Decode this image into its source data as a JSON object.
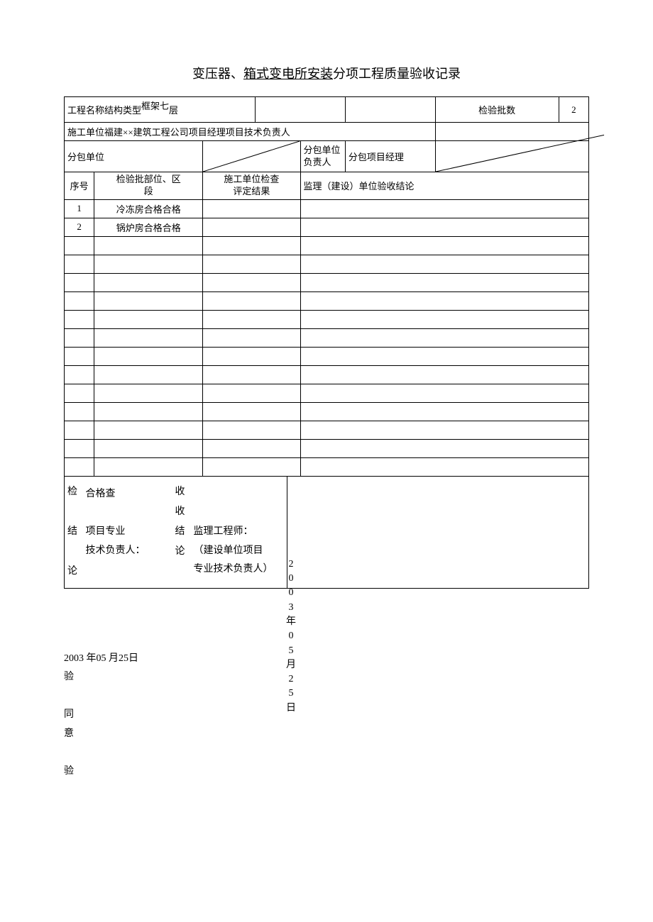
{
  "title_prefix": "变压器、",
  "title_underlined": "箱式变电所安装",
  "title_suffix": "分项工程质量验收记录",
  "header": {
    "projectLabel": "工程名称结构类型",
    "structureValue": "框架七",
    "floorSuffix": "层",
    "batchLabel": "检验批数",
    "batchValue": "2",
    "contractorLabel": "施工单位",
    "contractorValue": "福建××建筑工程公司",
    "pmLabel": "项目经理",
    "techLeadLabel": "项目技术负责人",
    "subcontractorLabel": "分包单位",
    "subResponsibleLabelA": "分包单位",
    "subResponsibleLabelB": "负责人",
    "subPmLabel": "分包项目经理"
  },
  "cols": {
    "seq": "序号",
    "part": "检验批部位、区\n段",
    "check": "施工单位检查\n评定结果",
    "supervisor": "监理（建设）单位验收结论"
  },
  "rows": [
    {
      "seq": "1",
      "part": "冷冻房",
      "r1": "合格",
      "r2": "合格"
    },
    {
      "seq": "2",
      "part": "锅炉房",
      "r1": "合格",
      "r2": "合格"
    }
  ],
  "conclusion": {
    "leftV1": "检",
    "leftV2": "结",
    "leftV3": "论",
    "leftV4": "查",
    "status": "合格",
    "techLead": "项目专业\n技术负责人：",
    "rightV1": "收",
    "rightV2": "收",
    "rightV3": "结",
    "rightV4": "论",
    "supervisorEng": "监理工程师：",
    "ownerTech": "（建设单位项目\n专业技术负责人）"
  },
  "footer": {
    "dateLeft": "2003 年05 月25日",
    "verify": "验",
    "agree1": "同",
    "agree2": "意",
    "verify2": "验",
    "dateVertical": "2003年05月25日"
  },
  "style": {
    "borderColor": "#000000",
    "background": "#ffffff",
    "textColor": "#000000",
    "titleFontSize": 18,
    "cellFontSize": 13,
    "emptyRows": 13
  }
}
